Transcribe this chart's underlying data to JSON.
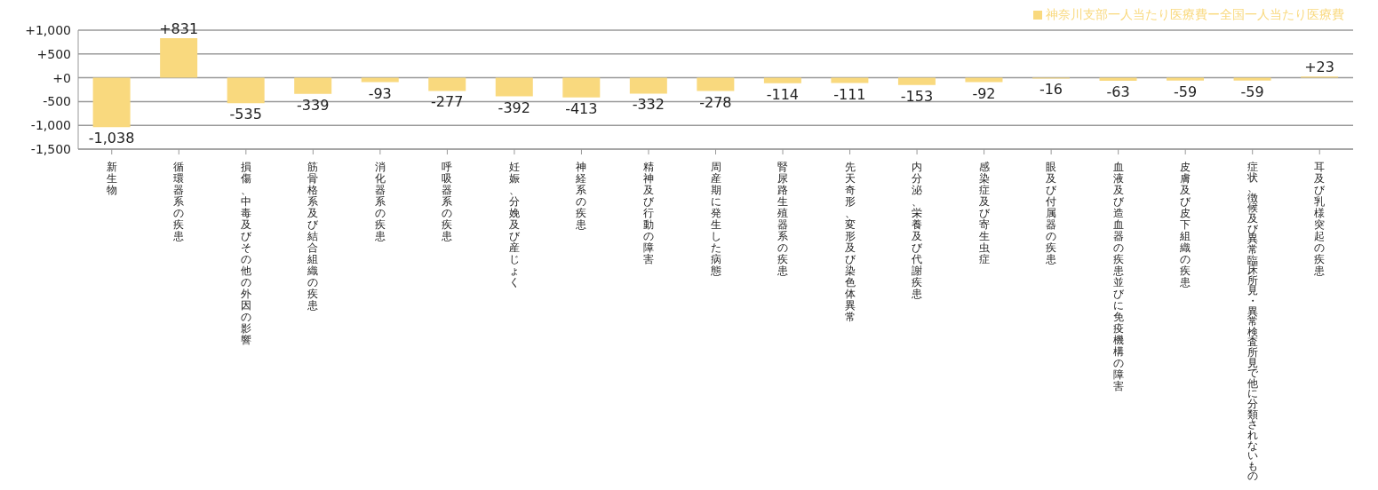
{
  "chart_data": {
    "type": "bar",
    "categories": [
      "新生物",
      "循環器系の疾患",
      "損傷、中毒及びその他の外因の影響",
      "筋骨格系及び結合組織の疾患",
      "消化器系の疾患",
      "呼吸器系の疾患",
      "妊娠、分娩及び産じょく",
      "神経系の疾患",
      "精神及び行動の障害",
      "周産期に発生した病態",
      "腎尿路生殖器系の疾患",
      "先天奇形、変形及び染色体異常",
      "内分泌、栄養及び代謝疾患",
      "感染症及び寄生虫症",
      "眼及び付属器の疾患",
      "血液及び造血器の疾患並びに免疫機構の障害",
      "皮膚及び皮下組織の疾患",
      "症状、徴候及び異常臨床所見・異常検査所見で他に分類されないもの",
      "耳及び乳様突起の疾患"
    ],
    "series": [
      {
        "name": "神奈川支部一人当たり医療費ー全国一人当たり医療費",
        "color": "#f9d97e",
        "values": [
          -1038,
          831,
          -535,
          -339,
          -93,
          -277,
          -392,
          -413,
          -332,
          -278,
          -114,
          -111,
          -153,
          -92,
          -16,
          -63,
          -59,
          -59,
          23
        ],
        "value_labels": [
          "-1,038",
          "+831",
          "-535",
          "-339",
          "-93",
          "-277",
          "-392",
          "-413",
          "-332",
          "-278",
          "-114",
          "-111",
          "-153",
          "-92",
          "-16",
          "-63",
          "-59",
          "-59",
          "+23"
        ]
      }
    ],
    "ylim": [
      -1500,
      1000
    ],
    "yticks": [
      {
        "value": -1500,
        "label": "-1,500"
      },
      {
        "value": -1000,
        "label": "-1,000"
      },
      {
        "value": -500,
        "label": "-500"
      },
      {
        "value": 0,
        "label": "+0"
      },
      {
        "value": 500,
        "label": "+500"
      },
      {
        "value": 1000,
        "label": "+1,000"
      }
    ],
    "grid": "y",
    "legend": "top right"
  }
}
